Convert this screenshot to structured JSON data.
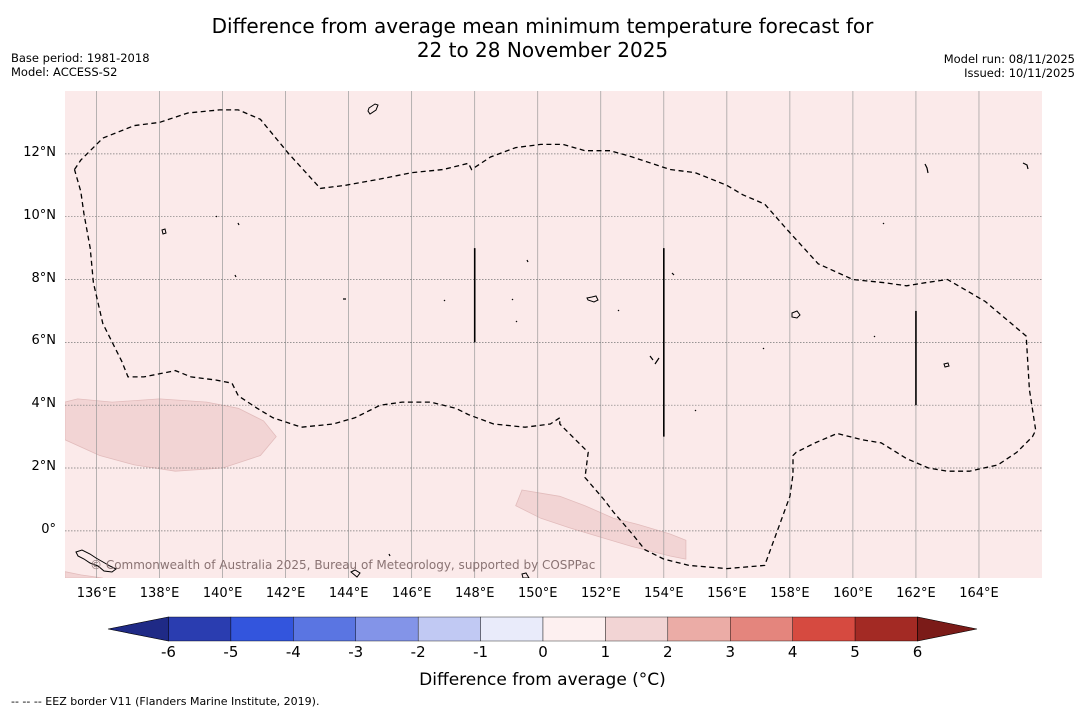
{
  "title_line1": "Difference from average mean minimum temperature forecast for",
  "title_line2": "22 to 28 November 2025",
  "meta_left": {
    "base_period": "Base period: 1981-2018",
    "model": "Model: ACCESS-S2"
  },
  "meta_right": {
    "model_run": "Model run: 08/11/2025",
    "issued": "Issued: 10/11/2025"
  },
  "copyright": "© Commonwealth of Australia 2025, Bureau of Meteorology, supported by COSPPac",
  "footnote": "--  --  -- EEZ border V11 (Flanders Marine Institute, 2019).",
  "colors": {
    "map_background": "#fbeaea",
    "anomaly_patch": "#f2d4d4",
    "grid": "#999999"
  },
  "chart_data": {
    "type": "map",
    "projection": "plate-carree",
    "lon_range": [
      135,
      166
    ],
    "lat_range": [
      -1.5,
      14
    ],
    "x_ticks": [
      "136°E",
      "138°E",
      "140°E",
      "142°E",
      "144°E",
      "146°E",
      "148°E",
      "150°E",
      "152°E",
      "154°E",
      "156°E",
      "158°E",
      "160°E",
      "162°E",
      "164°E"
    ],
    "x_tick_values": [
      136,
      138,
      140,
      142,
      144,
      146,
      148,
      150,
      152,
      154,
      156,
      158,
      160,
      162,
      164
    ],
    "y_ticks": [
      "12°N",
      "10°N",
      "8°N",
      "6°N",
      "4°N",
      "2°N",
      "0°"
    ],
    "y_tick_values": [
      12,
      10,
      8,
      6,
      4,
      2,
      0
    ],
    "background_category": "0 to 1",
    "anomaly_regions": [
      {
        "category": "1 to 2",
        "polygon": [
          [
            135,
            4.1
          ],
          [
            135.4,
            4.2
          ],
          [
            136.5,
            4.1
          ],
          [
            138,
            4.2
          ],
          [
            139.5,
            4.1
          ],
          [
            140.5,
            3.9
          ],
          [
            141.3,
            3.5
          ],
          [
            141.7,
            3.0
          ],
          [
            141.2,
            2.4
          ],
          [
            140,
            2.0
          ],
          [
            138.5,
            1.9
          ],
          [
            137.2,
            2.1
          ],
          [
            136.1,
            2.4
          ],
          [
            135,
            2.9
          ]
        ]
      },
      {
        "category": "1 to 2",
        "polygon": [
          [
            149.5,
            1.3
          ],
          [
            150.1,
            1.2
          ],
          [
            150.7,
            1.1
          ],
          [
            151.5,
            0.8
          ],
          [
            152.4,
            0.4
          ],
          [
            153.2,
            0.2
          ],
          [
            154.2,
            -0.1
          ],
          [
            154.7,
            -0.3
          ],
          [
            154.7,
            -0.9
          ],
          [
            154.2,
            -0.8
          ],
          [
            153,
            -0.5
          ],
          [
            152,
            -0.2
          ],
          [
            151,
            0.1
          ],
          [
            150.1,
            0.4
          ],
          [
            149.3,
            0.8
          ]
        ]
      },
      {
        "category": "1 to 2",
        "polygon": [
          [
            135,
            -1.3
          ],
          [
            135.5,
            -1.4
          ],
          [
            136.2,
            -1.5
          ],
          [
            135,
            -1.5
          ]
        ]
      }
    ],
    "eez_border": [
      [
        135.3,
        11.5
      ],
      [
        135.5,
        11.8
      ],
      [
        136.2,
        12.5
      ],
      [
        137.2,
        12.9
      ],
      [
        138,
        13
      ],
      [
        138.9,
        13.3
      ],
      [
        139.9,
        13.4
      ],
      [
        140.5,
        13.4
      ],
      [
        141.2,
        13.1
      ],
      [
        142.1,
        12
      ],
      [
        143.1,
        10.9
      ],
      [
        143.9,
        11
      ],
      [
        145,
        11.2
      ],
      [
        146,
        11.4
      ],
      [
        147,
        11.5
      ],
      [
        147.8,
        11.7
      ],
      [
        147.9,
        11.5
      ],
      [
        148.5,
        11.9
      ],
      [
        149.3,
        12.2
      ],
      [
        150.1,
        12.3
      ],
      [
        150.8,
        12.3
      ],
      [
        151.5,
        12.1
      ],
      [
        152.3,
        12.1
      ],
      [
        153,
        11.9
      ],
      [
        154.2,
        11.5
      ],
      [
        155,
        11.4
      ],
      [
        156,
        11
      ],
      [
        156.5,
        10.7
      ],
      [
        157.2,
        10.4
      ],
      [
        157.9,
        9.6
      ],
      [
        158.9,
        8.5
      ],
      [
        160,
        8
      ],
      [
        161,
        7.9
      ],
      [
        161.7,
        7.8
      ],
      [
        162.3,
        7.9
      ],
      [
        163,
        8
      ],
      [
        164.2,
        7.3
      ],
      [
        165.5,
        6.2
      ],
      [
        165.6,
        4.5
      ],
      [
        165.8,
        3.2
      ],
      [
        165.7,
        3
      ],
      [
        165.2,
        2.5
      ],
      [
        164.6,
        2.1
      ],
      [
        163.7,
        1.9
      ],
      [
        163,
        1.9
      ],
      [
        162.4,
        2
      ],
      [
        161.7,
        2.3
      ],
      [
        160.9,
        2.8
      ],
      [
        160.3,
        2.9
      ],
      [
        159.5,
        3.1
      ],
      [
        158.8,
        2.8
      ],
      [
        158.2,
        2.5
      ],
      [
        158.1,
        2.4
      ],
      [
        158.1,
        1.8
      ],
      [
        158,
        1.1
      ],
      [
        157.6,
        0
      ],
      [
        157.2,
        -1.1
      ],
      [
        156,
        -1.2
      ],
      [
        154.8,
        -1.1
      ],
      [
        154,
        -0.9
      ],
      [
        153.4,
        -0.6
      ],
      [
        153,
        -0.1
      ],
      [
        152.4,
        0.6
      ],
      [
        152.1,
        1
      ],
      [
        151.5,
        1.7
      ],
      [
        151.6,
        2.5
      ],
      [
        151.2,
        2.9
      ],
      [
        150.7,
        3.4
      ],
      [
        150.7,
        3.6
      ],
      [
        150.4,
        3.4
      ],
      [
        149.6,
        3.3
      ],
      [
        148.6,
        3.4
      ],
      [
        147.8,
        3.7
      ],
      [
        147.4,
        3.9
      ],
      [
        146.6,
        4.1
      ],
      [
        145.7,
        4.1
      ],
      [
        145,
        4
      ],
      [
        144.2,
        3.6
      ],
      [
        143.5,
        3.4
      ],
      [
        142.5,
        3.3
      ],
      [
        141.6,
        3.6
      ],
      [
        141.1,
        3.9
      ],
      [
        140.5,
        4.3
      ],
      [
        140.3,
        4.7
      ],
      [
        139.8,
        4.8
      ],
      [
        139,
        4.9
      ],
      [
        138.5,
        5.1
      ],
      [
        138,
        5
      ],
      [
        137.5,
        4.9
      ],
      [
        137,
        4.9
      ],
      [
        136.8,
        5.4
      ],
      [
        136.2,
        6.6
      ],
      [
        135.9,
        7.9
      ],
      [
        135.8,
        9
      ],
      [
        135.6,
        10.1
      ],
      [
        135.5,
        10.8
      ],
      [
        135.3,
        11.5
      ]
    ],
    "eez_segments": [
      [
        [
          148,
          9
        ],
        [
          148,
          6
        ]
      ],
      [
        [
          154,
          9
        ],
        [
          154,
          3
        ]
      ],
      [
        [
          162,
          7
        ],
        [
          162,
          4
        ]
      ]
    ],
    "colorbar": {
      "label": "Difference from average (°C)",
      "ticks": [
        "-6",
        "-5",
        "-4",
        "-3",
        "-2",
        "-1",
        "0",
        "1",
        "2",
        "3",
        "4",
        "5",
        "6"
      ],
      "tick_values": [
        -6,
        -5,
        -4,
        -3,
        -2,
        -1,
        0,
        1,
        2,
        3,
        4,
        5,
        6
      ],
      "colors": [
        "#2a3db0",
        "#3355dd",
        "#5a75e2",
        "#8394e8",
        "#c1c9f3",
        "#e9ebfa",
        "#fdf0f0",
        "#f2d4d4",
        "#ebaca6",
        "#e4857d",
        "#d64a40",
        "#a32a24"
      ],
      "extend_min_color": "#1f2a86",
      "extend_max_color": "#7b1b18"
    }
  }
}
